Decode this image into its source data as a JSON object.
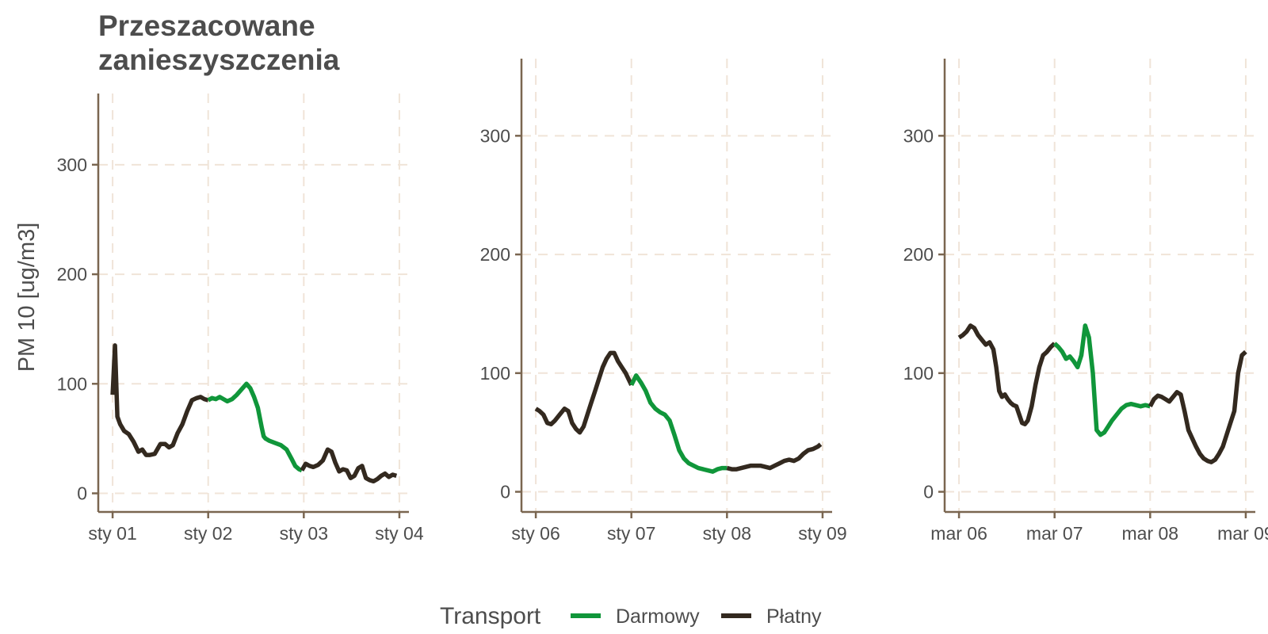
{
  "chart_data": {
    "type": "line",
    "title_lines": [
      "Przeszacowane",
      "zanieszyszczenia"
    ],
    "ylabel": "PM 10 [ug/m3]",
    "legend": {
      "title": "Transport",
      "placement": "bottom",
      "entries": [
        {
          "name": "Darmowy",
          "color": "#10963a"
        },
        {
          "name": "Płatny",
          "color": "#33291f"
        }
      ]
    },
    "colors": {
      "Darmowy": "#10963a",
      "Płatny": "#33291f",
      "axis": "#7a6650",
      "grid": "#f0e4d8"
    },
    "panels": [
      {
        "xlim": [
          -0.15,
          3.1
        ],
        "ylim": [
          -17,
          365
        ],
        "xticks": [
          0,
          1,
          2,
          3
        ],
        "xtick_labels": [
          "sty 01",
          "sty 02",
          "sty 03",
          "sty 04"
        ],
        "yticks": [
          0,
          100,
          200,
          300
        ],
        "ytick_labels": [
          "0",
          "100",
          "200",
          "300"
        ],
        "segments": [
          {
            "transport": "Płatny",
            "x": [
              0,
              0.025,
              0.05,
              0.08,
              0.12,
              0.17,
              0.22,
              0.27,
              0.31,
              0.35,
              0.39,
              0.44,
              0.5,
              0.55,
              0.59,
              0.63,
              0.68,
              0.73,
              0.78,
              0.83,
              0.88,
              0.92,
              0.96,
              1.0
            ],
            "y": [
              90,
              135,
              70,
              63,
              57,
              54,
              47,
              38,
              40,
              35,
              35,
              36,
              45,
              45,
              42,
              44,
              55,
              63,
              75,
              85,
              87,
              88,
              86,
              85
            ]
          },
          {
            "transport": "Darmowy",
            "x": [
              1.0,
              1.04,
              1.08,
              1.12,
              1.16,
              1.2,
              1.25,
              1.3,
              1.35,
              1.4,
              1.44,
              1.48,
              1.52,
              1.56,
              1.58,
              1.6,
              1.64,
              1.7,
              1.76,
              1.82,
              1.87,
              1.91,
              1.95,
              1.98
            ],
            "y": [
              85,
              87,
              86,
              88,
              86,
              84,
              86,
              90,
              95,
              100,
              96,
              88,
              78,
              60,
              52,
              50,
              48,
              46,
              44,
              40,
              32,
              25,
              22,
              21
            ]
          },
          {
            "transport": "Płatny",
            "x": [
              1.98,
              2.02,
              2.06,
              2.1,
              2.15,
              2.2,
              2.25,
              2.29,
              2.33,
              2.37,
              2.41,
              2.45,
              2.49,
              2.53,
              2.57,
              2.61,
              2.65,
              2.69,
              2.73,
              2.77,
              2.81,
              2.85,
              2.89,
              2.93,
              2.97
            ],
            "y": [
              21,
              27,
              25,
              24,
              26,
              30,
              40,
              38,
              28,
              20,
              22,
              21,
              14,
              16,
              23,
              25,
              14,
              12,
              11,
              13,
              16,
              18,
              15,
              17,
              16
            ]
          }
        ]
      },
      {
        "xlim": [
          -0.15,
          3.1
        ],
        "ylim": [
          -17,
          365
        ],
        "xticks": [
          0,
          1,
          2,
          3
        ],
        "xtick_labels": [
          "sty 06",
          "sty 07",
          "sty 08",
          "sty 09"
        ],
        "yticks": [
          0,
          100,
          200,
          300
        ],
        "ytick_labels": [
          "0",
          "100",
          "200",
          "300"
        ],
        "segments": [
          {
            "transport": "Płatny",
            "x": [
              0,
              0.04,
              0.08,
              0.12,
              0.16,
              0.2,
              0.25,
              0.3,
              0.34,
              0.38,
              0.42,
              0.46,
              0.5,
              0.54,
              0.58,
              0.62,
              0.66,
              0.7,
              0.74,
              0.78,
              0.82,
              0.86,
              0.9,
              0.94,
              0.97,
              1.0
            ],
            "y": [
              70,
              68,
              65,
              58,
              57,
              60,
              65,
              70,
              68,
              58,
              53,
              50,
              55,
              65,
              75,
              85,
              95,
              105,
              112,
              117,
              117,
              110,
              105,
              100,
              95,
              90
            ]
          },
          {
            "transport": "Darmowy",
            "x": [
              1.0,
              1.05,
              1.1,
              1.15,
              1.2,
              1.25,
              1.3,
              1.35,
              1.4,
              1.45,
              1.5,
              1.55,
              1.6,
              1.65,
              1.7,
              1.75,
              1.8,
              1.85,
              1.9,
              1.95,
              2.0
            ],
            "y": [
              90,
              98,
              92,
              85,
              75,
              70,
              67,
              65,
              60,
              48,
              35,
              28,
              24,
              22,
              20,
              19,
              18,
              17,
              19,
              20,
              20
            ]
          },
          {
            "transport": "Płatny",
            "x": [
              2.0,
              2.05,
              2.1,
              2.15,
              2.2,
              2.25,
              2.3,
              2.35,
              2.4,
              2.45,
              2.5,
              2.55,
              2.6,
              2.65,
              2.7,
              2.75,
              2.8,
              2.85,
              2.9,
              2.95,
              2.98
            ],
            "y": [
              20,
              19,
              19,
              20,
              21,
              22,
              22,
              22,
              21,
              20,
              22,
              24,
              26,
              27,
              26,
              28,
              32,
              35,
              36,
              38,
              40
            ]
          }
        ]
      },
      {
        "xlim": [
          -0.15,
          3.1
        ],
        "ylim": [
          -17,
          365
        ],
        "xticks": [
          0,
          1,
          2,
          3
        ],
        "xtick_labels": [
          "mar 06",
          "mar 07",
          "mar 08",
          "mar 09"
        ],
        "yticks": [
          0,
          100,
          200,
          300
        ],
        "ytick_labels": [
          "0",
          "100",
          "200",
          "300"
        ],
        "segments": [
          {
            "transport": "Płatny",
            "x": [
              0,
              0.04,
              0.08,
              0.12,
              0.16,
              0.2,
              0.24,
              0.28,
              0.32,
              0.36,
              0.39,
              0.42,
              0.45,
              0.48,
              0.51,
              0.54,
              0.57,
              0.6,
              0.63,
              0.66,
              0.69,
              0.72,
              0.76,
              0.8,
              0.84,
              0.88,
              0.92,
              0.96,
              1.0
            ],
            "y": [
              130,
              132,
              135,
              140,
              138,
              132,
              128,
              124,
              126,
              120,
              105,
              85,
              80,
              82,
              78,
              75,
              73,
              72,
              65,
              58,
              57,
              60,
              72,
              90,
              105,
              115,
              118,
              122,
              125
            ]
          },
          {
            "transport": "Darmowy",
            "x": [
              1.0,
              1.04,
              1.08,
              1.12,
              1.16,
              1.2,
              1.24,
              1.28,
              1.32,
              1.36,
              1.4,
              1.44,
              1.48,
              1.52,
              1.56,
              1.6,
              1.65,
              1.7,
              1.75,
              1.8,
              1.85,
              1.9,
              1.95,
              2.0
            ],
            "y": [
              125,
              122,
              118,
              112,
              114,
              110,
              105,
              115,
              140,
              130,
              100,
              52,
              48,
              50,
              55,
              60,
              65,
              70,
              73,
              74,
              73,
              72,
              73,
              72
            ]
          },
          {
            "transport": "Płatny",
            "x": [
              2.0,
              2.04,
              2.08,
              2.12,
              2.16,
              2.2,
              2.24,
              2.28,
              2.32,
              2.36,
              2.4,
              2.44,
              2.48,
              2.52,
              2.56,
              2.6,
              2.64,
              2.68,
              2.72,
              2.76,
              2.8,
              2.84,
              2.88,
              2.92,
              2.96,
              3.0
            ],
            "y": [
              72,
              78,
              81,
              80,
              78,
              76,
              80,
              84,
              82,
              68,
              52,
              45,
              38,
              32,
              28,
              26,
              25,
              27,
              32,
              38,
              48,
              58,
              68,
              100,
              115,
              118
            ]
          }
        ]
      }
    ]
  }
}
